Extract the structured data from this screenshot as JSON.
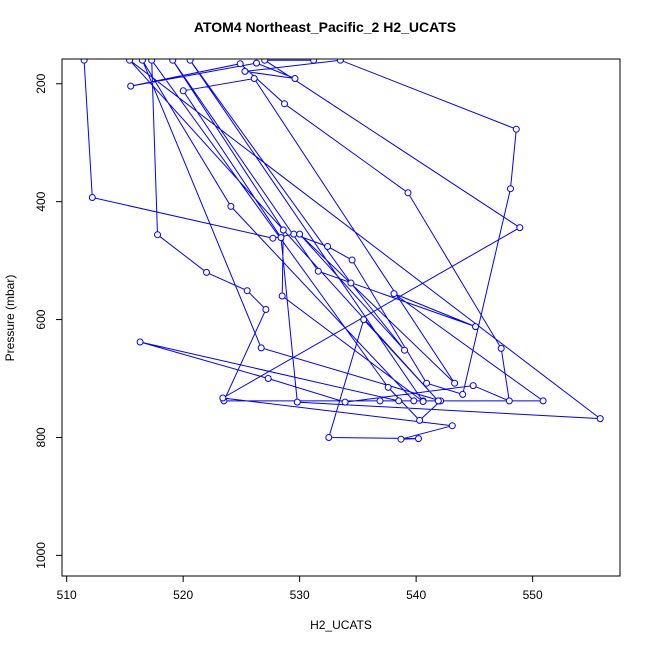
{
  "chart_data": {
    "type": "line",
    "title": "ATOM4 Northeast_Pacific_2 H2_UCATS",
    "xlabel": "H2_UCATS",
    "ylabel": "Pressure (mbar)",
    "xlim": [
      509.6,
      557.5
    ],
    "ylim": [
      1035,
      158
    ],
    "y_reversed": true,
    "xticks": [
      510,
      520,
      530,
      540,
      550
    ],
    "yticks": [
      200,
      400,
      600,
      800,
      1000
    ],
    "color": "#0000ff",
    "series": [
      {
        "x": [
          511.5,
          512.2,
          527.7,
          529.5,
          532.4,
          534.5,
          540.9,
          544.0,
          548.1,
          548.6,
          533.5,
          525.3,
          529.6,
          526.3,
          515.5,
          524.9,
          528.7,
          539.3,
          547.3,
          548.0,
          544.9,
          533.9,
          527.3,
          516.3,
          538.5,
          540.6,
          536.9,
          541.9,
          539.8,
          524.1,
          516.5,
          526.7,
          542.1,
          540.3,
          537.6,
          517.3,
          517.8,
          522.0,
          525.5,
          527.1,
          523.5,
          550.9,
          538.1,
          545.1,
          531.6,
          519.1,
          528.6,
          528.5,
          540.6,
          520.6,
          534.4,
          539.0,
          530.0,
          543.3,
          526.1,
          520.0,
          528.4,
          529.8,
          555.8,
          515.4,
          541.9,
          535.5,
          532.5,
          540.2,
          538.7,
          543.1,
          523.4,
          548.9,
          527.0,
          531.2
        ],
        "y": [
          160,
          393,
          462,
          455,
          476,
          499,
          708,
          727,
          378,
          277,
          160,
          179,
          191,
          165,
          204,
          166,
          234,
          385,
          649,
          738,
          712,
          740,
          700,
          638,
          738,
          738,
          738,
          738,
          738,
          408,
          160,
          648,
          738,
          771,
          715,
          160,
          456,
          520,
          551,
          583,
          738,
          738,
          556,
          612,
          518,
          160,
          448,
          560,
          739,
          160,
          538,
          652,
          455,
          708,
          191,
          212,
          461,
          740,
          768,
          160,
          738,
          600,
          800,
          802,
          803,
          780,
          733,
          444,
          160,
          160
        ]
      }
    ]
  }
}
